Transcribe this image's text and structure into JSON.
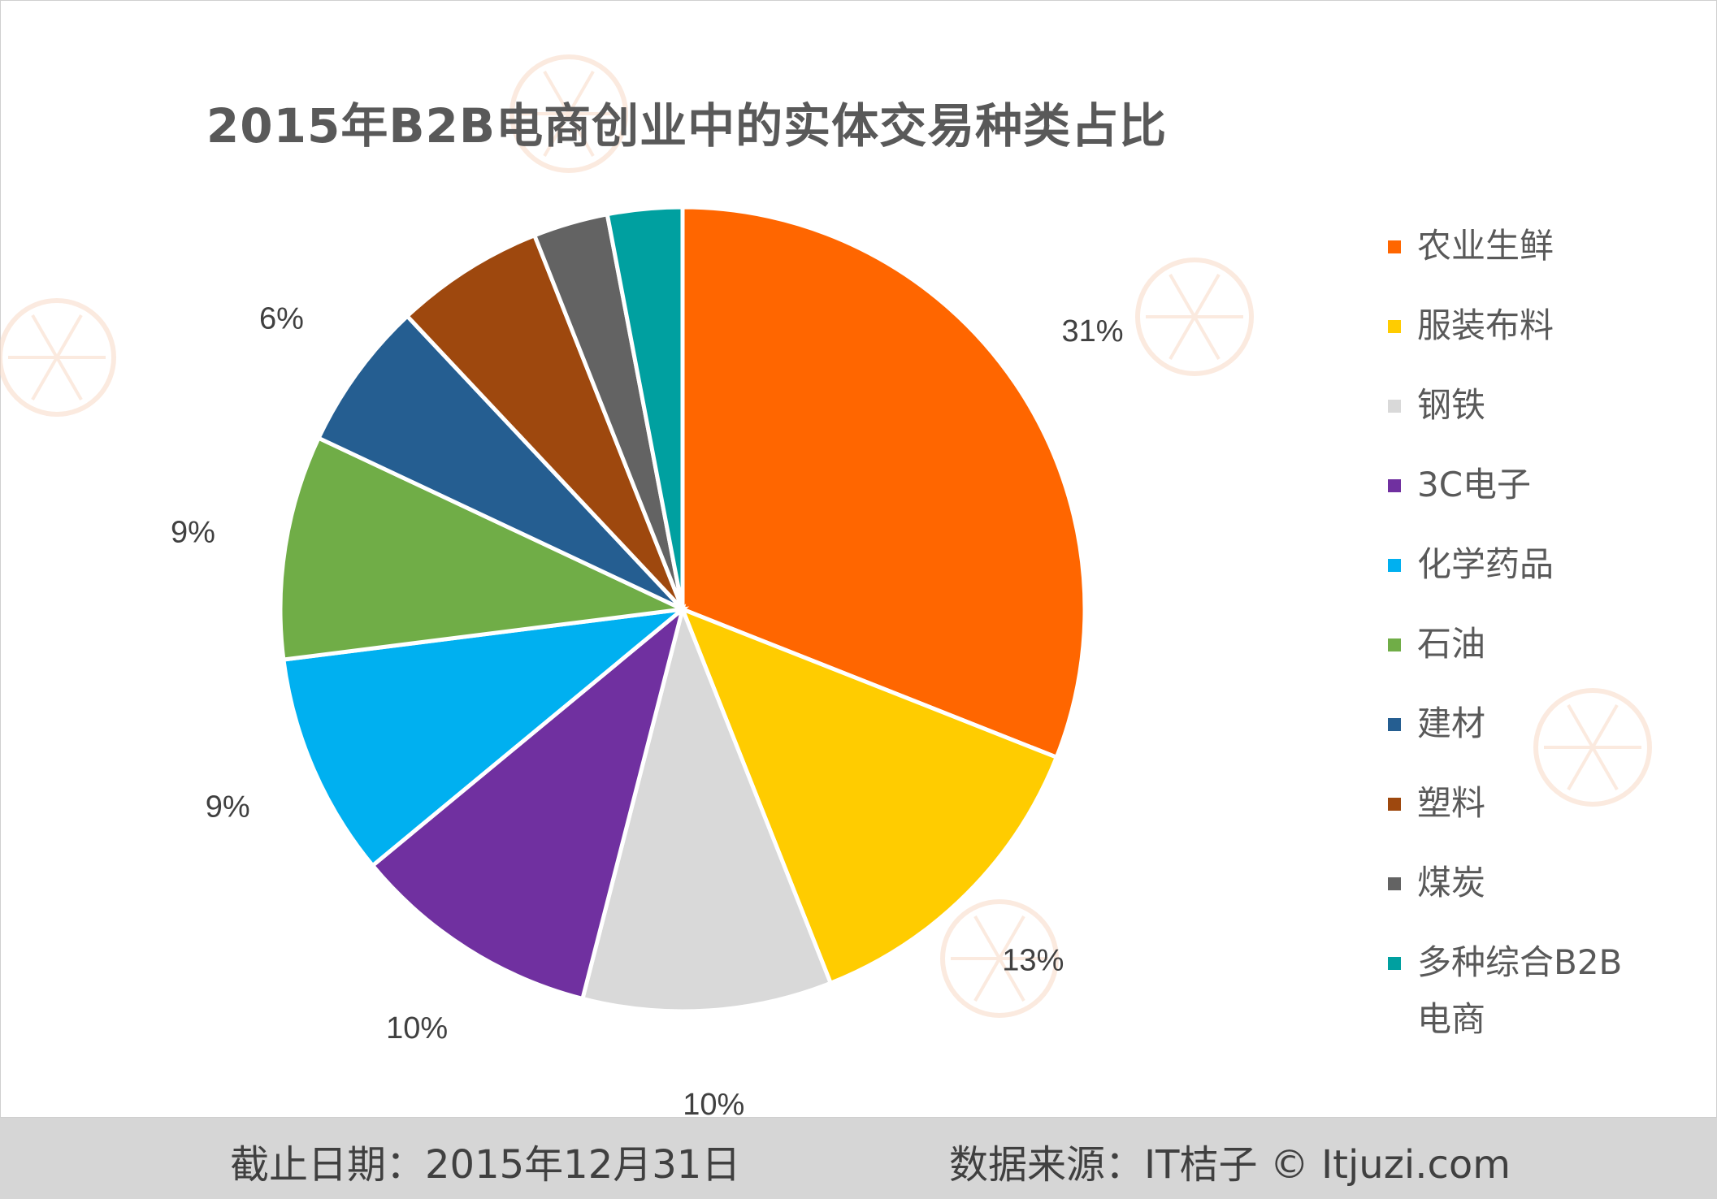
{
  "chart_data": {
    "type": "pie",
    "title": "2015年B2B电商创业中的实体交易种类占比",
    "categories": [
      "农业生鲜",
      "服装布料",
      "钢铁",
      "3C电子",
      "化学药品",
      "石油",
      "建材",
      "塑料",
      "煤炭",
      "多种综合B2B电商"
    ],
    "values": [
      31,
      13,
      10,
      10,
      9,
      9,
      6,
      6,
      3,
      3
    ],
    "data_labels": [
      "31%",
      "13%",
      "10%",
      "10%",
      "9%",
      "9%",
      "6%",
      "",
      "",
      ""
    ],
    "colors": [
      "#FF6600",
      "#FFCC00",
      "#D9D9D9",
      "#7030A0",
      "#00B0F0",
      "#70AD47",
      "#255E91",
      "#9E480E",
      "#636363",
      "#00A0A0"
    ],
    "legend_position": "right"
  },
  "footer": {
    "date": "截止日期：2015年12月31日",
    "source": "数据来源：IT桔子 © Itjuzi.com"
  },
  "watermark": {
    "brand": "IT桔子",
    "url": "ITJUZI.COM"
  }
}
